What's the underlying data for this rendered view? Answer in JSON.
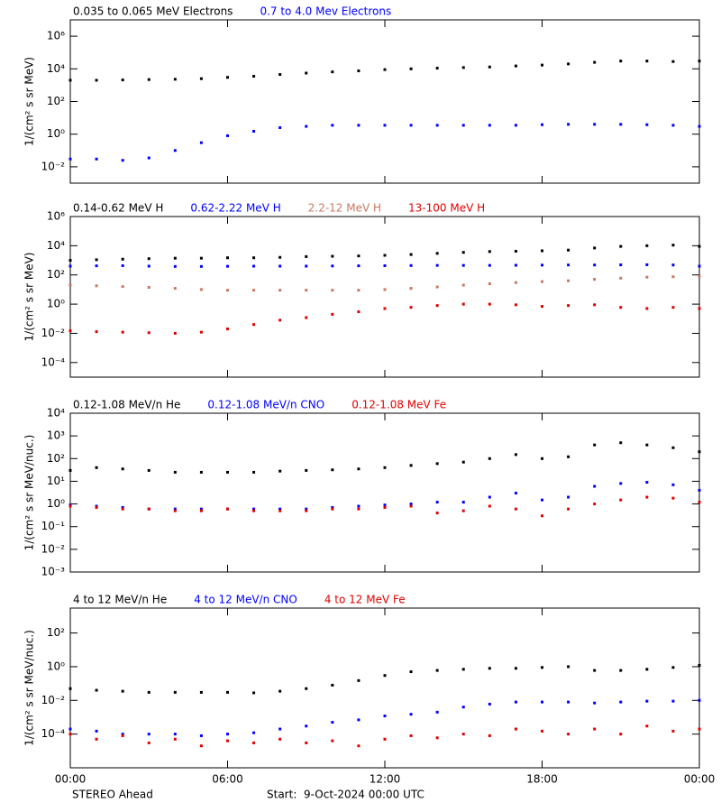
{
  "chart_data": [
    {
      "type": "scatter",
      "yscale": "log",
      "ylabel": "1/(cm² s sr MeV)",
      "x": [
        0,
        1,
        2,
        3,
        4,
        5,
        6,
        7,
        8,
        9,
        10,
        11,
        12,
        13,
        14,
        15,
        16,
        17,
        18,
        19,
        20,
        21,
        22,
        23,
        24
      ],
      "xlim": [
        0,
        24
      ],
      "xticks": [
        0,
        6,
        12,
        18,
        24
      ],
      "ylim": [
        0.001,
        10000000
      ],
      "yticks": [
        {
          "value": 0.01,
          "label": "10⁻²"
        },
        {
          "value": 1,
          "label": "10⁰"
        },
        {
          "value": 100,
          "label": "10²"
        },
        {
          "value": 10000,
          "label": "10⁴"
        },
        {
          "value": 1000000,
          "label": "10⁶"
        }
      ],
      "series": [
        {
          "name": "0.035 to 0.065 MeV Electrons",
          "color": "#000000",
          "values": [
            2000,
            2000,
            2100,
            2200,
            2300,
            2500,
            3000,
            3500,
            4500,
            5500,
            6500,
            7500,
            9000,
            10000,
            11000,
            12000,
            13000,
            15000,
            17000,
            20000,
            25000,
            30000,
            30000,
            28000,
            30000
          ]
        },
        {
          "name": "0.7 to 4.0 Mev Electrons",
          "color": "#0000ff",
          "values": [
            0.03,
            0.03,
            0.025,
            0.035,
            0.1,
            0.3,
            0.8,
            1.5,
            2.5,
            3,
            3.5,
            3.5,
            3.5,
            3.5,
            3.5,
            3.5,
            3.5,
            3.5,
            3.8,
            4,
            4,
            4,
            3.8,
            3.5,
            3
          ]
        }
      ]
    },
    {
      "type": "scatter",
      "yscale": "log",
      "ylabel": "1/(cm² s sr MeV)",
      "x": [
        0,
        1,
        2,
        3,
        4,
        5,
        6,
        7,
        8,
        9,
        10,
        11,
        12,
        13,
        14,
        15,
        16,
        17,
        18,
        19,
        20,
        21,
        22,
        23,
        24
      ],
      "xlim": [
        0,
        24
      ],
      "xticks": [
        0,
        6,
        12,
        18,
        24
      ],
      "ylim": [
        1e-05,
        1000000
      ],
      "yticks": [
        {
          "value": 0.0001,
          "label": "10⁻⁴"
        },
        {
          "value": 0.01,
          "label": "10⁻²"
        },
        {
          "value": 1,
          "label": "10⁰"
        },
        {
          "value": 100,
          "label": "10²"
        },
        {
          "value": 10000,
          "label": "10⁴"
        },
        {
          "value": 1000000,
          "label": "10⁶"
        }
      ],
      "series": [
        {
          "name": "0.14-0.62 MeV H",
          "color": "#000000",
          "values": [
            1000,
            1100,
            1200,
            1300,
            1400,
            1400,
            1500,
            1500,
            1600,
            1800,
            1900,
            2000,
            2200,
            2500,
            3000,
            3500,
            4000,
            4200,
            4500,
            5000,
            7000,
            9000,
            10000,
            11000,
            9000
          ]
        },
        {
          "name": "0.62-2.22 MeV H",
          "color": "#0000ff",
          "values": [
            400,
            420,
            430,
            400,
            380,
            380,
            390,
            400,
            400,
            400,
            410,
            420,
            430,
            440,
            450,
            450,
            450,
            460,
            470,
            480,
            480,
            490,
            500,
            480,
            400
          ]
        },
        {
          "name": "2.2-12 MeV H",
          "color": "#c87860",
          "values": [
            20,
            18,
            16,
            14,
            12,
            10,
            9,
            9,
            9,
            9,
            9,
            9,
            10,
            12,
            15,
            20,
            25,
            30,
            35,
            40,
            50,
            60,
            70,
            75,
            80
          ]
        },
        {
          "name": "13-100 MeV H",
          "color": "#e00000",
          "values": [
            0.015,
            0.013,
            0.012,
            0.011,
            0.01,
            0.012,
            0.02,
            0.04,
            0.08,
            0.12,
            0.2,
            0.3,
            0.5,
            0.6,
            0.8,
            1,
            1,
            0.9,
            0.7,
            0.8,
            0.9,
            0.6,
            0.5,
            0.6,
            0.5
          ]
        }
      ]
    },
    {
      "type": "scatter",
      "yscale": "log",
      "ylabel": "1/(cm² s sr MeV/nuc.)",
      "x": [
        0,
        1,
        2,
        3,
        4,
        5,
        6,
        7,
        8,
        9,
        10,
        11,
        12,
        13,
        14,
        15,
        16,
        17,
        18,
        19,
        20,
        21,
        22,
        23,
        24
      ],
      "xlim": [
        0,
        24
      ],
      "xticks": [
        0,
        6,
        12,
        18,
        24
      ],
      "ylim": [
        0.001,
        10000
      ],
      "yticks": [
        {
          "value": 0.001,
          "label": "10⁻³"
        },
        {
          "value": 0.01,
          "label": "10⁻²"
        },
        {
          "value": 0.1,
          "label": "10⁻¹"
        },
        {
          "value": 1,
          "label": "10⁰"
        },
        {
          "value": 10,
          "label": "10¹"
        },
        {
          "value": 100,
          "label": "10²"
        },
        {
          "value": 1000,
          "label": "10³"
        },
        {
          "value": 10000,
          "label": "10⁴"
        }
      ],
      "series": [
        {
          "name": "0.12-1.08 MeV/n He",
          "color": "#000000",
          "values": [
            30,
            40,
            35,
            30,
            25,
            25,
            25,
            25,
            28,
            30,
            32,
            35,
            40,
            50,
            60,
            70,
            100,
            150,
            100,
            120,
            400,
            500,
            400,
            300,
            200
          ]
        },
        {
          "name": "0.12-1.08 MeV/n CNO",
          "color": "#0000ff",
          "values": [
            0.9,
            0.8,
            0.7,
            0.6,
            0.6,
            0.6,
            0.6,
            0.6,
            0.6,
            0.6,
            0.7,
            0.8,
            0.9,
            1,
            1.2,
            1.2,
            2,
            3,
            1.5,
            2,
            6,
            8,
            9,
            7,
            4
          ]
        },
        {
          "name": "0.12-1.08 MeV Fe",
          "color": "#e00000",
          "values": [
            0.8,
            0.7,
            0.6,
            0.6,
            0.5,
            0.5,
            0.6,
            0.5,
            0.5,
            0.5,
            0.6,
            0.6,
            0.7,
            0.8,
            0.4,
            0.5,
            0.8,
            0.6,
            0.3,
            0.6,
            1,
            1.5,
            2,
            1.8,
            1.2
          ]
        }
      ]
    },
    {
      "type": "scatter",
      "yscale": "log",
      "ylabel": "1/(cm² s sr MeV/nuc.)",
      "x": [
        0,
        1,
        2,
        3,
        4,
        5,
        6,
        7,
        8,
        9,
        10,
        11,
        12,
        13,
        14,
        15,
        16,
        17,
        18,
        19,
        20,
        21,
        22,
        23,
        24
      ],
      "xlim": [
        0,
        24
      ],
      "xticks": [
        {
          "value": 0,
          "label": "00:00"
        },
        {
          "value": 6,
          "label": "06:00"
        },
        {
          "value": 12,
          "label": "12:00"
        },
        {
          "value": 18,
          "label": "18:00"
        },
        {
          "value": 24,
          "label": "00:00"
        }
      ],
      "ylim": [
        1e-06,
        3000
      ],
      "yticks": [
        {
          "value": 0.0001,
          "label": "10⁻⁴"
        },
        {
          "value": 0.01,
          "label": "10⁻²"
        },
        {
          "value": 1,
          "label": "10⁰"
        },
        {
          "value": 100,
          "label": "10²"
        }
      ],
      "series": [
        {
          "name": "4 to 12 MeV/n He",
          "color": "#000000",
          "values": [
            0.05,
            0.04,
            0.035,
            0.03,
            0.03,
            0.03,
            0.03,
            0.028,
            0.035,
            0.05,
            0.08,
            0.15,
            0.3,
            0.5,
            0.6,
            0.7,
            0.8,
            0.8,
            0.9,
            1,
            0.6,
            0.6,
            0.7,
            0.9,
            1.2
          ]
        },
        {
          "name": "4 to 12 MeV/n CNO",
          "color": "#0000ff",
          "values": [
            0.0002,
            0.00015,
            0.0001,
            0.0001,
            0.0001,
            8e-05,
            0.0001,
            0.00012,
            0.0002,
            0.0003,
            0.0005,
            0.0007,
            0.0012,
            0.0015,
            0.002,
            0.004,
            0.006,
            0.008,
            0.008,
            0.008,
            0.007,
            0.008,
            0.009,
            0.009,
            0.01
          ]
        },
        {
          "name": "4 to 12 MeV Fe",
          "color": "#e00000",
          "values": [
            0.0001,
            5e-05,
            8e-05,
            3e-05,
            5e-05,
            2e-05,
            4e-05,
            3e-05,
            5e-05,
            3e-05,
            4e-05,
            2e-05,
            5e-05,
            8e-05,
            6e-05,
            0.0001,
            8e-05,
            0.0002,
            0.00015,
            0.0001,
            0.0002,
            0.0001,
            0.0003,
            0.00015,
            0.0002
          ]
        }
      ]
    }
  ],
  "footer": {
    "left": "STEREO Ahead",
    "right": "Start:  9-Oct-2024 00:00 UTC"
  }
}
